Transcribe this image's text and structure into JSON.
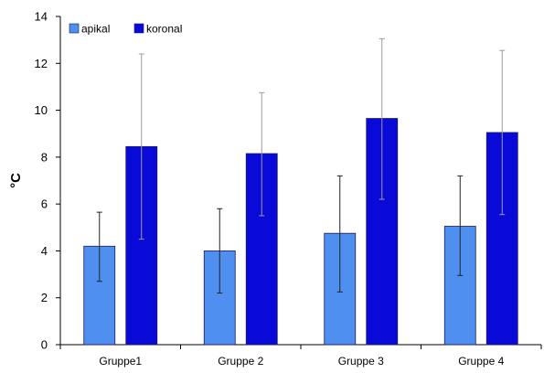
{
  "chart_data": {
    "type": "bar",
    "title": "",
    "xlabel": "",
    "ylabel": "°C",
    "ylim": [
      0,
      14
    ],
    "yticks": [
      0,
      2,
      4,
      6,
      8,
      10,
      12,
      14
    ],
    "grid": false,
    "legend_position": "top-left",
    "categories": [
      "Gruppe1",
      "Gruppe 2",
      "Gruppe 3",
      "Gruppe 4"
    ],
    "series": [
      {
        "name": "apikal",
        "color": "#4f8ff0",
        "values": [
          4.2,
          4.0,
          4.75,
          5.05
        ],
        "error_low": [
          2.7,
          2.2,
          2.25,
          2.95
        ],
        "error_high": [
          5.65,
          5.8,
          7.2,
          7.2
        ]
      },
      {
        "name": "koronal",
        "color": "#0a0ad8",
        "values": [
          8.45,
          8.15,
          9.65,
          9.05
        ],
        "error_low": [
          4.5,
          5.5,
          6.2,
          5.55
        ],
        "error_high": [
          12.4,
          10.75,
          13.05,
          12.55
        ]
      }
    ]
  }
}
